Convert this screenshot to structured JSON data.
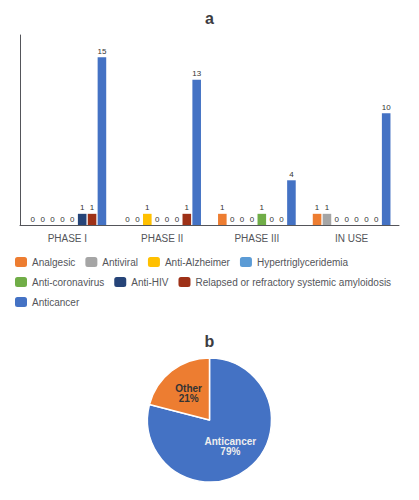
{
  "chart_data": [
    {
      "type": "bar",
      "title": "a",
      "categories": [
        "PHASE I",
        "PHASE II",
        "PHASE III",
        "IN USE"
      ],
      "series": [
        {
          "name": "Analgesic",
          "color": "#ED7D31",
          "values": [
            0,
            0,
            1,
            1
          ]
        },
        {
          "name": "Antiviral",
          "color": "#A5A5A5",
          "values": [
            0,
            0,
            0,
            1
          ]
        },
        {
          "name": "Anti-Alzheimer",
          "color": "#FFC000",
          "values": [
            0,
            1,
            0,
            0
          ]
        },
        {
          "name": "Hypertriglyceridemia",
          "color": "#5B9BD5",
          "values": [
            0,
            0,
            0,
            0
          ]
        },
        {
          "name": "Anti-coronavirus",
          "color": "#70AD47",
          "values": [
            0,
            0,
            1,
            0
          ]
        },
        {
          "name": "Anti-HIV",
          "color": "#264478",
          "values": [
            1,
            0,
            0,
            0
          ]
        },
        {
          "name": "Relapsed or refractory systemic amyloidosis",
          "color": "#9E3117",
          "values": [
            1,
            1,
            0,
            0
          ]
        },
        {
          "name": "Anticancer",
          "color": "#4472C4",
          "values": [
            15,
            13,
            4,
            10
          ]
        }
      ],
      "ylim": [
        0,
        17
      ],
      "yticks": [],
      "grid": false,
      "tick_labels": "x",
      "data_labels": true,
      "legend": "bottom"
    },
    {
      "type": "pie",
      "title": "b",
      "categories": [
        "Anticancer",
        "Other"
      ],
      "values": [
        79,
        21
      ],
      "value_labels": [
        "79%",
        "21%"
      ],
      "colors": [
        "#4472C4",
        "#ED7D31"
      ],
      "data_labels": true
    }
  ]
}
